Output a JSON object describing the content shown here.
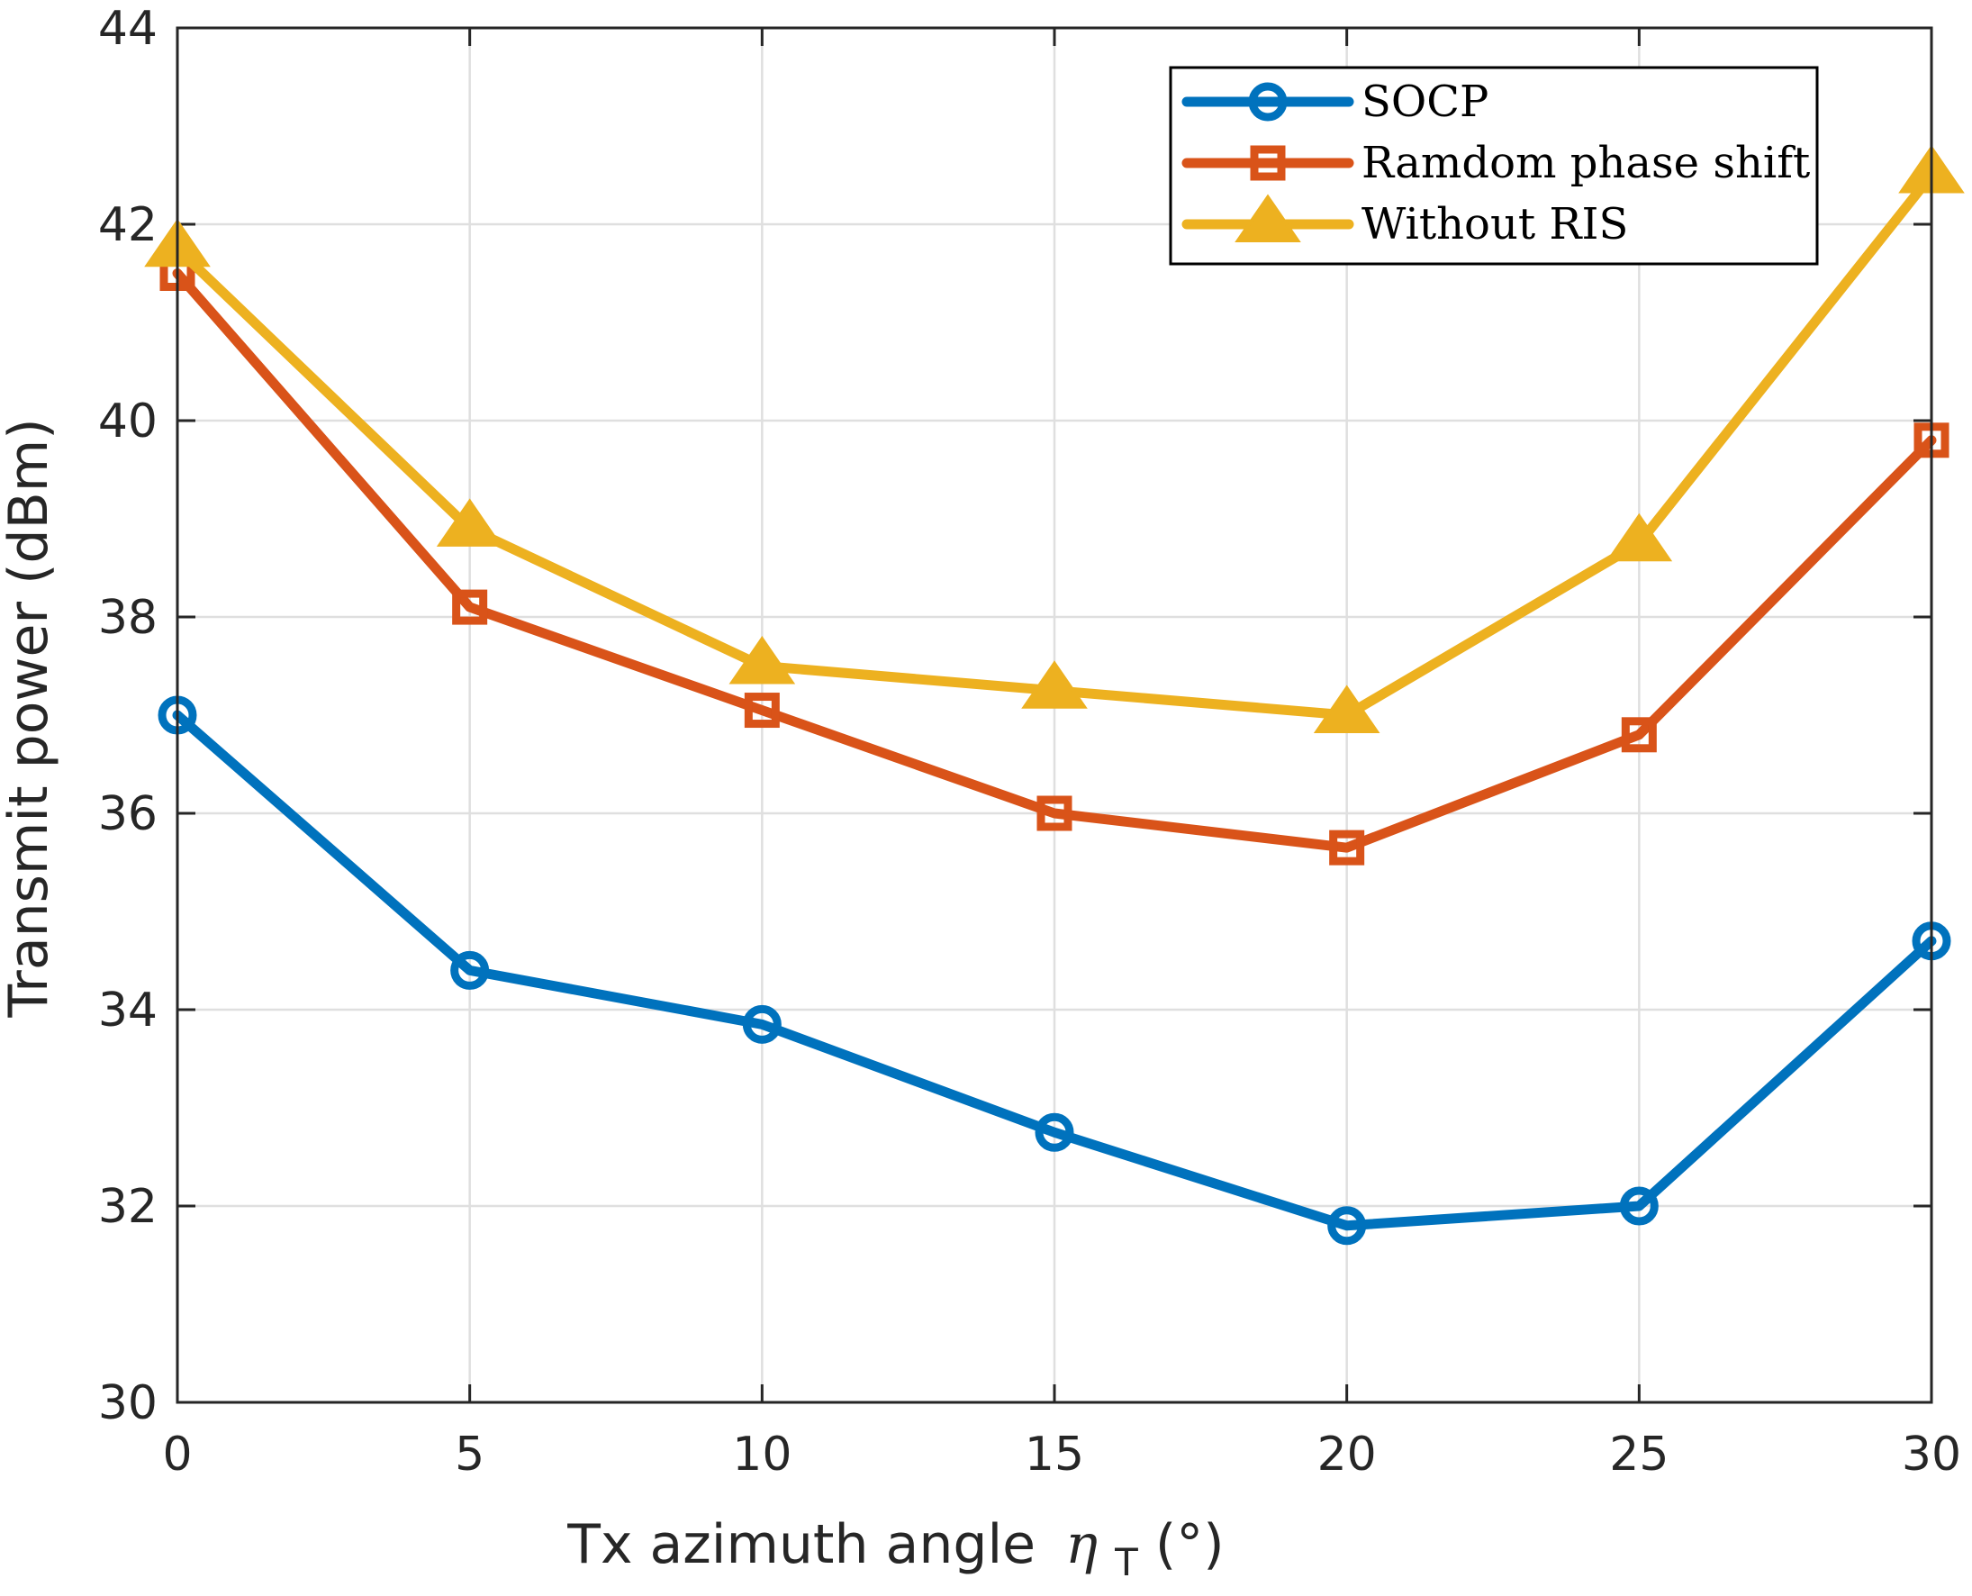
{
  "chart_data": {
    "type": "line",
    "xlabel": "Tx azimuth angle",
    "xlabel_symbol": "η",
    "xlabel_subscript": "T",
    "xlabel_unit": "(°)",
    "ylabel": "Transmit power (dBm)",
    "xlim": [
      0,
      30
    ],
    "ylim": [
      30,
      44
    ],
    "xticks": [
      "0",
      "5",
      "10",
      "15",
      "20",
      "25",
      "30"
    ],
    "yticks": [
      "30",
      "32",
      "34",
      "36",
      "38",
      "40",
      "42",
      "44"
    ],
    "grid": true,
    "legend_position": "top-right",
    "x": [
      0,
      5,
      10,
      15,
      20,
      25,
      30
    ],
    "series": [
      {
        "name": "SOCP",
        "color": "#0072BD",
        "marker": "circle",
        "values": [
          37.0,
          34.4,
          33.85,
          32.75,
          31.8,
          32.0,
          34.7
        ]
      },
      {
        "name": "Ramdom phase shift",
        "color": "#D95319",
        "marker": "square",
        "values": [
          41.5,
          38.1,
          37.05,
          36.0,
          35.65,
          36.8,
          39.8
        ]
      },
      {
        "name": "Without RIS",
        "color": "#EDB120",
        "marker": "triangle",
        "values": [
          41.75,
          38.9,
          37.5,
          37.25,
          37.0,
          38.75,
          42.5
        ]
      }
    ]
  }
}
